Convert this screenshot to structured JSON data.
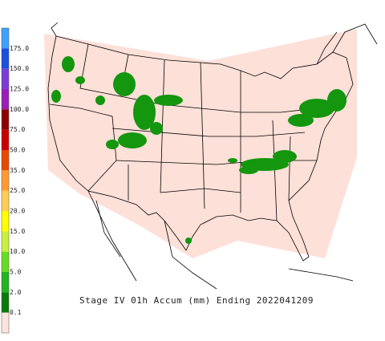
{
  "title": "Stage IV 01h Accum (mm) Ending 2022041209",
  "legend": {
    "labels": [
      "175.0",
      "150.0",
      "125.0",
      "100.0",
      "75.0",
      "50.0",
      "35.0",
      "25.0",
      "20.0",
      "15.0",
      "10.0",
      "5.0",
      "2.0",
      "0.1"
    ],
    "colors": [
      "#3fa0ff",
      "#1a4fe0",
      "#7a3cd6",
      "#9a1fb5",
      "#8b0000",
      "#c80000",
      "#e84a00",
      "#ff9a33",
      "#ffcc55",
      "#ffff00",
      "#c8f040",
      "#66dd22",
      "#22b422",
      "#0a7a0a",
      "#fde4dc"
    ]
  }
}
